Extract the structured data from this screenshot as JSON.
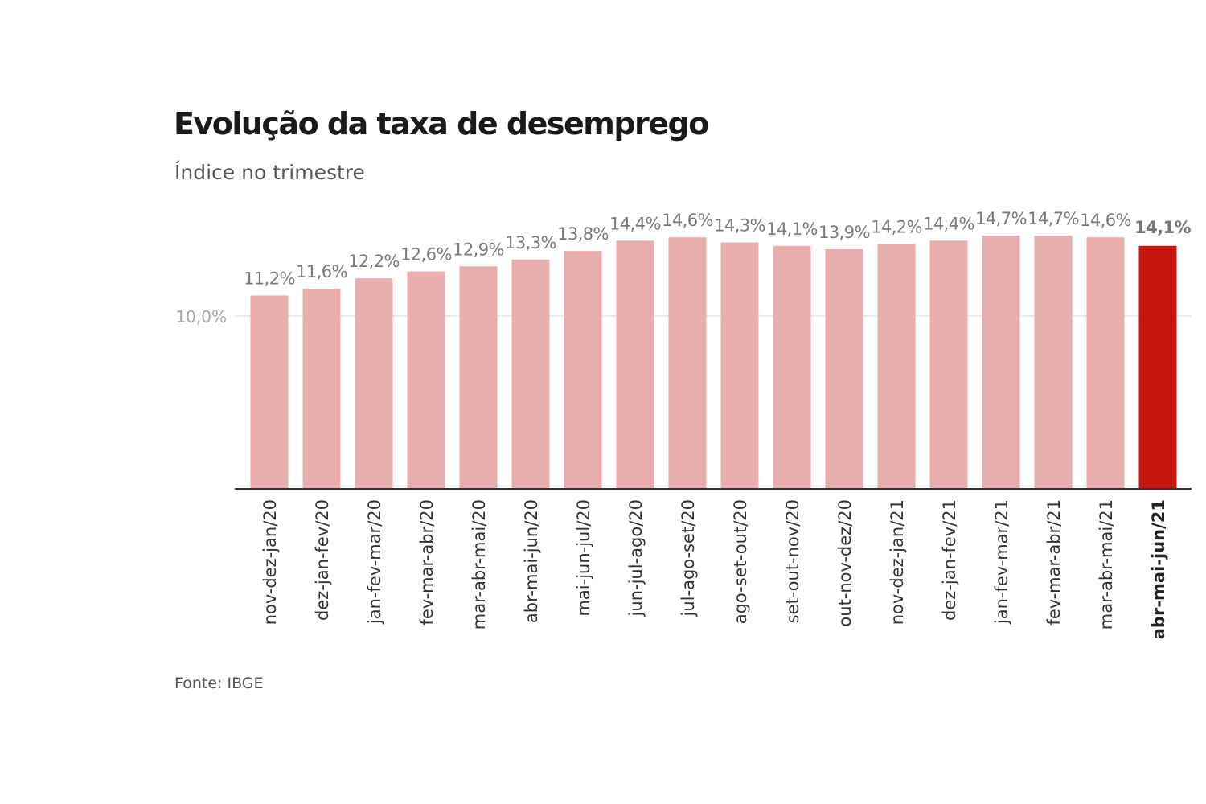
{
  "title": "Evolução da taxa de desemprego",
  "subtitle": "Índice no trimestre",
  "source": "Fonte: IBGE",
  "colors": {
    "bar": "#e8adad",
    "highlight_bar": "#c4160e",
    "title": "#1a1a1a",
    "muted_text": "#6b6b6b",
    "gridline": "#e6e6e6",
    "axis": "#333333"
  },
  "chart_data": {
    "type": "bar",
    "title": "Evolução da taxa de desemprego",
    "subtitle": "Índice no trimestre",
    "xlabel": "",
    "ylabel": "",
    "ylim": [
      0,
      15
    ],
    "grid": true,
    "y_ticks": [
      {
        "value": 10,
        "label": "10,0%"
      }
    ],
    "categories": [
      "nov-dez-jan/20",
      "dez-jan-fev/20",
      "jan-fev-mar/20",
      "fev-mar-abr/20",
      "mar-abr-mai/20",
      "abr-mai-jun/20",
      "mai-jun-jul/20",
      "jun-jul-ago/20",
      "jul-ago-set/20",
      "ago-set-out/20",
      "set-out-nov/20",
      "out-nov-dez/20",
      "nov-dez-jan/21",
      "dez-jan-fev/21",
      "jan-fev-mar/21",
      "fev-mar-abr/21",
      "mar-abr-mai/21",
      "abr-mai-jun/21"
    ],
    "values": [
      11.2,
      11.6,
      12.2,
      12.6,
      12.9,
      13.3,
      13.8,
      14.4,
      14.6,
      14.3,
      14.1,
      13.9,
      14.2,
      14.4,
      14.7,
      14.7,
      14.6,
      14.1
    ],
    "value_labels": [
      "11,2%",
      "11,6%",
      "12,2%",
      "12,6%",
      "12,9%",
      "13,3%",
      "13,8%",
      "14,4%",
      "14,6%",
      "14,3%",
      "14,1%",
      "13,9%",
      "14,2%",
      "14,4%",
      "14,7%",
      "14,7%",
      "14,6%",
      "14,1%"
    ],
    "highlight_index": 17
  }
}
